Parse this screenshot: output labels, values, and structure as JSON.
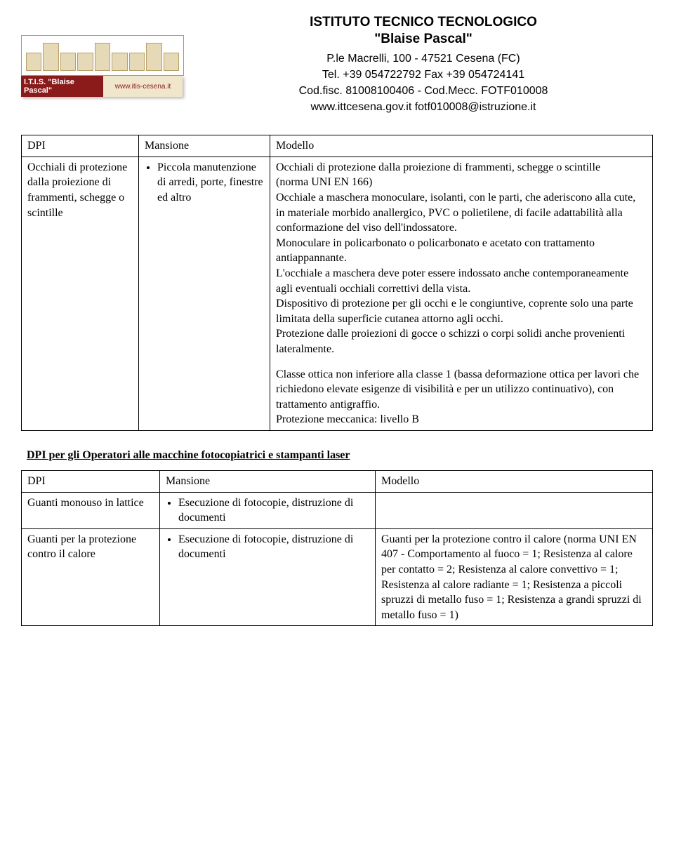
{
  "header": {
    "logo_banner_left": "I.T.I.S. \"Blaise Pascal\"",
    "logo_banner_right": "www.itis-cesena.it",
    "title_line1": "ISTITUTO TECNICO TECNOLOGICO",
    "title_line2": "\"Blaise Pascal\"",
    "addr_line1": "P.le Macrelli, 100 - 47521 Cesena (FC)",
    "addr_line2": "Tel. +39 054722792 Fax +39 054724141",
    "addr_line3": "Cod.fisc. 81008100406 - Cod.Mecc. FOTF010008",
    "addr_line4": "www.ittcesena.gov.it fotf010008@istruzione.it"
  },
  "table1": {
    "h_dpi": "DPI",
    "h_mansione": "Mansione",
    "h_modello": "Modello",
    "r1_dpi": "Occhiali di protezione dalla proiezione di frammenti, schegge o scintille",
    "r1_bullet": "Piccola manutenzione di arredi, porte, finestre ed altro",
    "r1_p1": "Occhiali di protezione dalla proiezione di frammenti, schegge o scintille",
    "r1_p2": "(norma UNI EN 166)",
    "r1_p3": "Occhiale a maschera monoculare, isolanti, con le parti, che aderiscono alla cute, in materiale morbido anallergico, PVC o polietilene, di facile adattabilità alla conformazione del viso dell'indossatore.",
    "r1_p4": "Monoculare in policarbonato o policarbonato e acetato con trattamento antiappannante.",
    "r1_p5": "L'occhiale a maschera deve poter essere indossato anche contemporaneamente agli eventuali occhiali correttivi della vista.",
    "r1_p6": "Dispositivo di protezione per gli occhi e le congiuntive, coprente solo una parte limitata della superficie cutanea attorno agli occhi.",
    "r1_p7": "Protezione dalle proiezioni di gocce o schizzi o corpi solidi anche provenienti lateralmente.",
    "r1_p8": "Classe ottica non inferiore alla classe 1 (bassa deformazione ottica per lavori che richiedono elevate esigenze di visibilità e per un utilizzo continuativo), con trattamento antigraffio.",
    "r1_p9": "Protezione meccanica: livello B"
  },
  "section2_heading": "DPI per gli Operatori alle macchine fotocopiatrici e stampanti laser",
  "table2": {
    "h_dpi": "DPI",
    "h_mansione": "Mansione",
    "h_modello": "Modello",
    "r1_dpi": "Guanti monouso in lattice",
    "r1_bullet": "Esecuzione di fotocopie, distruzione di documenti",
    "r2_dpi": "Guanti per la protezione contro il calore",
    "r2_bullet": "Esecuzione di fotocopie, distruzione di documenti",
    "r2_modello": "Guanti per la protezione contro il calore (norma UNI EN 407 - Comportamento al fuoco = 1; Resistenza al calore per contatto = 2; Resistenza al calore convettivo = 1; Resistenza al calore radiante = 1; Resistenza a piccoli spruzzi di metallo fuso = 1; Resistenza a grandi spruzzi di metallo fuso = 1)"
  }
}
